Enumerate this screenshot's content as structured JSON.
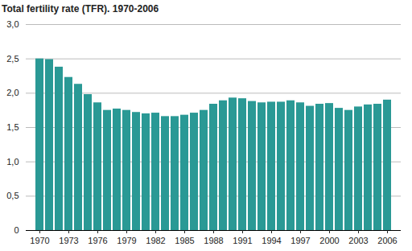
{
  "chart_data": {
    "type": "bar",
    "title": "Total fertility rate (TFR). 1970-2006",
    "categories": [
      "1970",
      null,
      null,
      "1973",
      null,
      null,
      "1976",
      null,
      null,
      "1979",
      null,
      null,
      "1982",
      null,
      null,
      "1985",
      null,
      null,
      "1988",
      null,
      null,
      "1991",
      null,
      null,
      "1994",
      null,
      null,
      "1997",
      null,
      null,
      "2000",
      null,
      null,
      "2003",
      null,
      null,
      "2006"
    ],
    "values": [
      2.5,
      2.49,
      2.38,
      2.23,
      2.13,
      1.98,
      1.86,
      1.75,
      1.77,
      1.75,
      1.72,
      1.7,
      1.71,
      1.66,
      1.66,
      1.68,
      1.71,
      1.75,
      1.84,
      1.89,
      1.93,
      1.92,
      1.88,
      1.86,
      1.87,
      1.87,
      1.89,
      1.86,
      1.81,
      1.84,
      1.85,
      1.78,
      1.75,
      1.8,
      1.83,
      1.84,
      1.9
    ],
    "color": "#2a9995",
    "ylim": [
      0,
      3
    ],
    "yticks": [
      0,
      {
        "value": 0.5,
        "label": "0,5"
      },
      {
        "value": 1,
        "label": "1,0"
      },
      {
        "value": 1.5,
        "label": "1,5"
      },
      {
        "value": 2,
        "label": "2,0"
      },
      {
        "value": 2.5,
        "label": "2,5"
      },
      {
        "value": 3,
        "label": "3,0"
      }
    ],
    "grid": true
  }
}
